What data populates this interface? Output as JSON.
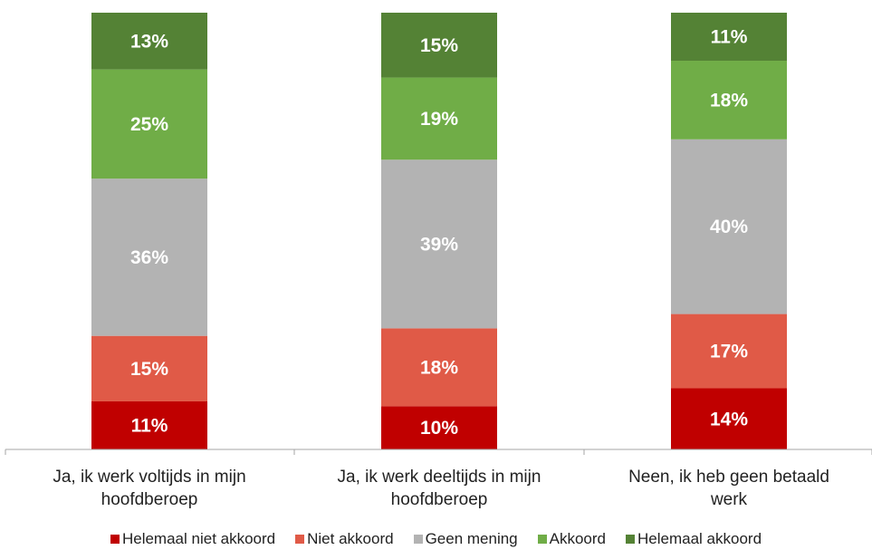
{
  "chart_data": {
    "type": "bar",
    "stacked": true,
    "percent": true,
    "categories": [
      [
        "Ja, ik werk voltijds in mijn",
        "hoofdberoep"
      ],
      [
        "Ja, ik werk deeltijds in mijn",
        "hoofdberoep"
      ],
      [
        "Neen, ik heb geen betaald",
        "werk"
      ]
    ],
    "series": [
      {
        "name": "Helemaal niet akkoord",
        "color": "#c00000",
        "values": [
          11,
          10,
          14
        ],
        "labels": [
          "11%",
          "10%",
          "14%"
        ]
      },
      {
        "name": "Niet akkoord",
        "color": "#e05a47",
        "values": [
          15,
          18,
          17
        ],
        "labels": [
          "15%",
          "18%",
          "17%"
        ]
      },
      {
        "name": "Geen mening",
        "color": "#b3b3b3",
        "values": [
          36,
          39,
          40
        ],
        "labels": [
          "36%",
          "39%",
          "40%"
        ]
      },
      {
        "name": "Akkoord",
        "color": "#70ad47",
        "values": [
          25,
          19,
          18
        ],
        "labels": [
          "25%",
          "19%",
          "18%"
        ]
      },
      {
        "name": "Helemaal akkoord",
        "color": "#548235",
        "values": [
          13,
          15,
          11
        ],
        "labels": [
          "13%",
          "15%",
          "11%"
        ]
      }
    ],
    "ylim": [
      0,
      100
    ],
    "legend_position": "bottom",
    "grid": false
  }
}
